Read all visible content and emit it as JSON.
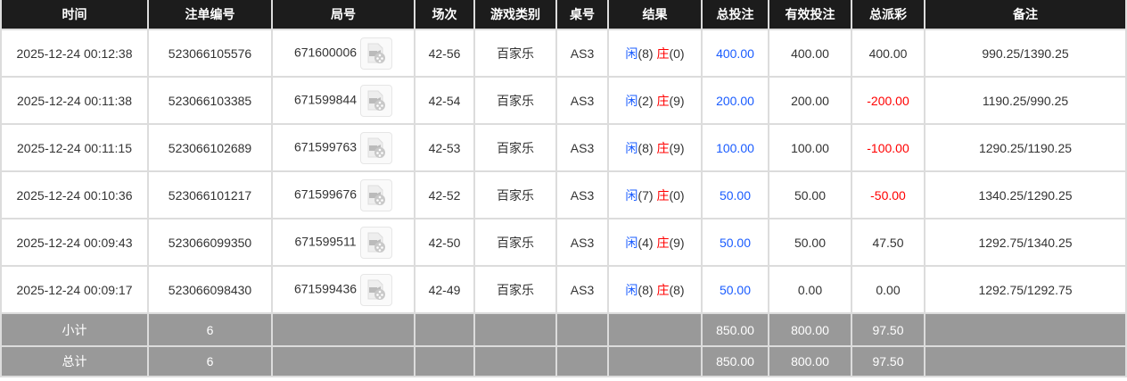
{
  "headers": [
    "时间",
    "注单编号",
    "局号",
    "场次",
    "游戏类别",
    "桌号",
    "结果",
    "总投注",
    "有效投注",
    "总派彩",
    "备注"
  ],
  "rows": [
    {
      "time": "2025-12-24 00:12:38",
      "bet_id": "523066105576",
      "round": "671600006",
      "session": "42-56",
      "game": "百家乐",
      "table": "AS3",
      "player_label": "闲",
      "player": "(8)",
      "banker_label": "庄",
      "banker": "(0)",
      "total_bet": "400.00",
      "valid_bet": "400.00",
      "payout": "400.00",
      "payout_negative": false,
      "note": "990.25/1390.25"
    },
    {
      "time": "2025-12-24 00:11:38",
      "bet_id": "523066103385",
      "round": "671599844",
      "session": "42-54",
      "game": "百家乐",
      "table": "AS3",
      "player_label": "闲",
      "player": "(2)",
      "banker_label": "庄",
      "banker": "(9)",
      "total_bet": "200.00",
      "valid_bet": "200.00",
      "payout": "-200.00",
      "payout_negative": true,
      "note": "1190.25/990.25"
    },
    {
      "time": "2025-12-24 00:11:15",
      "bet_id": "523066102689",
      "round": "671599763",
      "session": "42-53",
      "game": "百家乐",
      "table": "AS3",
      "player_label": "闲",
      "player": "(8)",
      "banker_label": "庄",
      "banker": "(9)",
      "total_bet": "100.00",
      "valid_bet": "100.00",
      "payout": "-100.00",
      "payout_negative": true,
      "note": "1290.25/1190.25"
    },
    {
      "time": "2025-12-24 00:10:36",
      "bet_id": "523066101217",
      "round": "671599676",
      "session": "42-52",
      "game": "百家乐",
      "table": "AS3",
      "player_label": "闲",
      "player": "(7)",
      "banker_label": "庄",
      "banker": "(0)",
      "total_bet": "50.00",
      "valid_bet": "50.00",
      "payout": "-50.00",
      "payout_negative": true,
      "note": "1340.25/1290.25"
    },
    {
      "time": "2025-12-24 00:09:43",
      "bet_id": "523066099350",
      "round": "671599511",
      "session": "42-50",
      "game": "百家乐",
      "table": "AS3",
      "player_label": "闲",
      "player": "(4)",
      "banker_label": "庄",
      "banker": "(9)",
      "total_bet": "50.00",
      "valid_bet": "50.00",
      "payout": "47.50",
      "payout_negative": false,
      "note": "1292.75/1340.25"
    },
    {
      "time": "2025-12-24 00:09:17",
      "bet_id": "523066098430",
      "round": "671599436",
      "session": "42-49",
      "game": "百家乐",
      "table": "AS3",
      "player_label": "闲",
      "player": "(8)",
      "banker_label": "庄",
      "banker": "(8)",
      "total_bet": "50.00",
      "valid_bet": "0.00",
      "payout": "0.00",
      "payout_negative": false,
      "note": "1292.75/1292.75"
    }
  ],
  "subtotal": {
    "label": "小计",
    "count": "6",
    "total_bet": "850.00",
    "valid_bet": "800.00",
    "payout": "97.50"
  },
  "total": {
    "label": "总计",
    "count": "6",
    "total_bet": "850.00",
    "valid_bet": "800.00",
    "payout": "97.50"
  },
  "colors": {
    "header_bg": "#1c1c1c",
    "player": "#1a5cff",
    "banker": "#ff0000",
    "summary_bg": "#999999"
  },
  "icons": {
    "replay": "video-replay-icon"
  }
}
